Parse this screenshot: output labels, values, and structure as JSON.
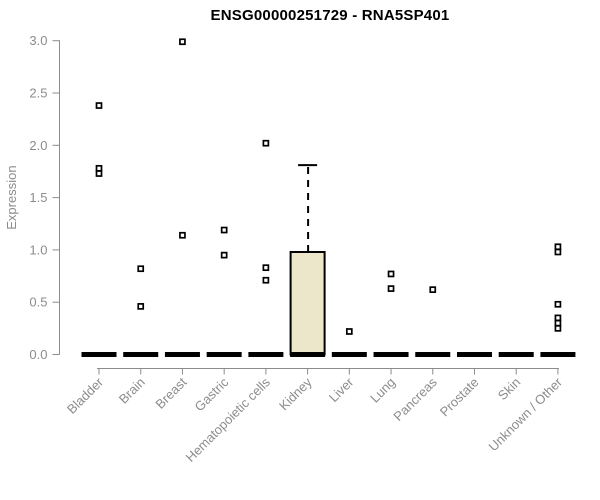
{
  "chart_data": {
    "type": "boxplot",
    "title": "ENSG00000251729 - RNA5SP401",
    "ylabel": "Expression",
    "xlabel": "",
    "ylim": [
      0.0,
      3.0
    ],
    "yticks": [
      0.0,
      0.5,
      1.0,
      1.5,
      2.0,
      2.5,
      3.0
    ],
    "grid": false,
    "legend": false,
    "categories": [
      "Bladder",
      "Brain",
      "Breast",
      "Gastric",
      "Hematopoietic cells",
      "Kidney",
      "Liver",
      "Lung",
      "Pancreas",
      "Prostate",
      "Skin",
      "Unknown / Other"
    ],
    "boxes": [
      {
        "category": "Bladder",
        "median": 0,
        "q1": 0,
        "q3": 0,
        "whisker_low": 0,
        "whisker_high": 0,
        "outliers": [
          2.38,
          1.78,
          1.73
        ]
      },
      {
        "category": "Brain",
        "median": 0,
        "q1": 0,
        "q3": 0,
        "whisker_low": 0,
        "whisker_high": 0,
        "outliers": [
          0.82,
          0.46
        ]
      },
      {
        "category": "Breast",
        "median": 0,
        "q1": 0,
        "q3": 0,
        "whisker_low": 0,
        "whisker_high": 0,
        "outliers": [
          2.99,
          1.14
        ]
      },
      {
        "category": "Gastric",
        "median": 0,
        "q1": 0,
        "q3": 0,
        "whisker_low": 0,
        "whisker_high": 0,
        "outliers": [
          1.19,
          0.95
        ]
      },
      {
        "category": "Hematopoietic cells",
        "median": 0,
        "q1": 0,
        "q3": 0,
        "whisker_low": 0,
        "whisker_high": 0,
        "outliers": [
          2.02,
          0.83,
          0.71
        ]
      },
      {
        "category": "Kidney",
        "median": 0,
        "q1": 0,
        "q3": 0.98,
        "whisker_low": 0,
        "whisker_high": 1.81,
        "outliers": []
      },
      {
        "category": "Liver",
        "median": 0,
        "q1": 0,
        "q3": 0,
        "whisker_low": 0,
        "whisker_high": 0,
        "outliers": [
          0.22
        ]
      },
      {
        "category": "Lung",
        "median": 0,
        "q1": 0,
        "q3": 0,
        "whisker_low": 0,
        "whisker_high": 0,
        "outliers": [
          0.77,
          0.63
        ]
      },
      {
        "category": "Pancreas",
        "median": 0,
        "q1": 0,
        "q3": 0,
        "whisker_low": 0,
        "whisker_high": 0,
        "outliers": [
          0.62
        ]
      },
      {
        "category": "Prostate",
        "median": 0,
        "q1": 0,
        "q3": 0,
        "whisker_low": 0,
        "whisker_high": 0,
        "outliers": []
      },
      {
        "category": "Skin",
        "median": 0,
        "q1": 0,
        "q3": 0,
        "whisker_low": 0,
        "whisker_high": 0,
        "outliers": []
      },
      {
        "category": "Unknown / Other",
        "median": 0,
        "q1": 0,
        "q3": 0,
        "whisker_low": 0,
        "whisker_high": 0,
        "outliers": [
          1.03,
          0.98,
          0.48,
          0.35,
          0.3,
          0.25
        ]
      }
    ],
    "colors": {
      "box_fill": "#ECE7CB",
      "box_border": "#000000",
      "median": "#000000",
      "whisker": "#000000",
      "outlier_stroke": "#000000",
      "outlier_fill": "#ffffff",
      "axis": "#8C8C8C",
      "tick_label": "#8C8C8C",
      "title": "#000000"
    }
  }
}
